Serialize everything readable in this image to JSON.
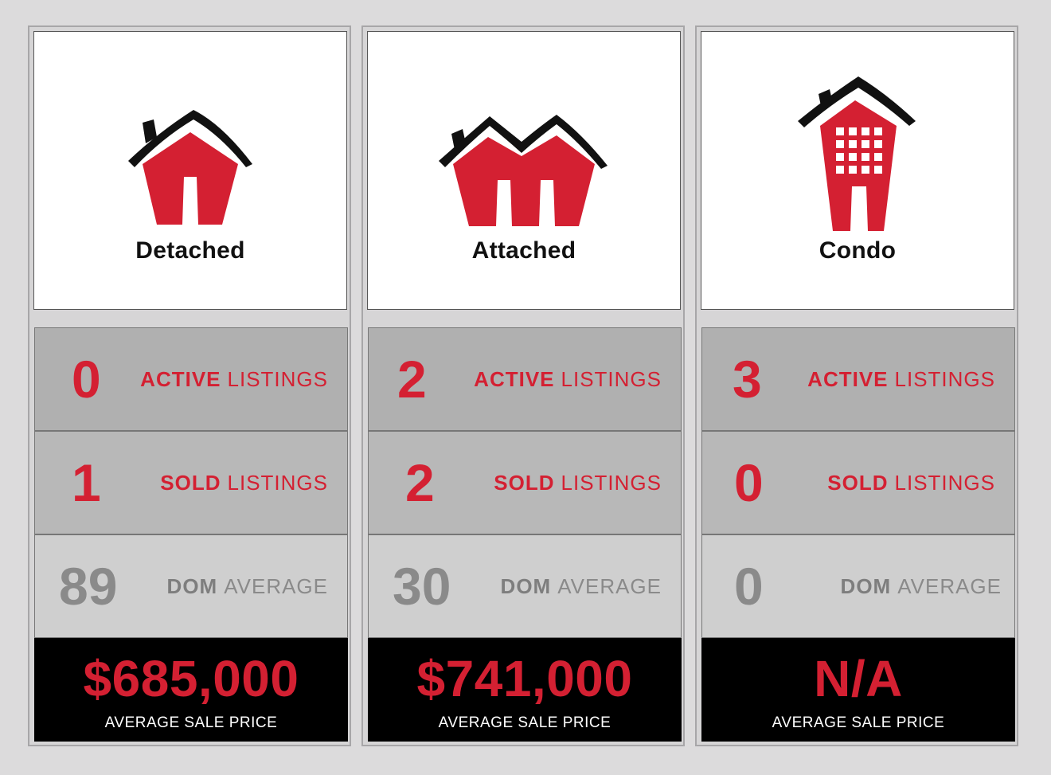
{
  "colors": {
    "accent": "#d42032",
    "muted": "#8a8a8a",
    "background": "#dcdbdc"
  },
  "cards": [
    {
      "title": "Detached",
      "icon": "detached-house-icon",
      "active_count": "0",
      "active_strong": "ACTIVE",
      "active_light": "LISTINGS",
      "sold_count": "1",
      "sold_strong": "SOLD",
      "sold_light": "LISTINGS",
      "dom_value": "89",
      "dom_strong": "DOM",
      "dom_light": "AVERAGE",
      "price": "$685,000",
      "price_caption": "AVERAGE SALE PRICE"
    },
    {
      "title": "Attached",
      "icon": "attached-house-icon",
      "active_count": "2",
      "active_strong": "ACTIVE",
      "active_light": "LISTINGS",
      "sold_count": "2",
      "sold_strong": "SOLD",
      "sold_light": "LISTINGS",
      "dom_value": "30",
      "dom_strong": "DOM",
      "dom_light": "AVERAGE",
      "price": "$741,000",
      "price_caption": "AVERAGE SALE PRICE"
    },
    {
      "title": "Condo",
      "icon": "condo-building-icon",
      "active_count": "3",
      "active_strong": "ACTIVE",
      "active_light": "LISTINGS",
      "sold_count": "0",
      "sold_strong": "SOLD",
      "sold_light": "LISTINGS",
      "dom_value": "0",
      "dom_strong": "DOM",
      "dom_light": "AVERAGE",
      "price": "N/A",
      "price_caption": "AVERAGE SALE PRICE"
    }
  ]
}
